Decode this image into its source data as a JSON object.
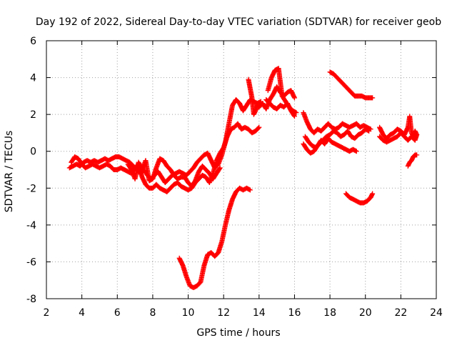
{
  "chart_data": {
    "type": "scatter",
    "title": "Day 192 of 2022, Sidereal Day-to-day VTEC variation (SDTVAR) for receiver geob",
    "xlabel": "GPS time / hours",
    "ylabel": "SDTVAR / TECUs",
    "xlim": [
      2,
      24
    ],
    "ylim": [
      -8,
      6
    ],
    "xticks": [
      "2",
      "4",
      "6",
      "8",
      "10",
      "12",
      "14",
      "16",
      "18",
      "20",
      "22",
      "24"
    ],
    "yticks": [
      "-8",
      "-6",
      "-4",
      "-2",
      "0",
      "2",
      "4",
      "6"
    ],
    "grid": true,
    "marker": "plus",
    "marker_color": "#ff0000",
    "series": [
      {
        "values": [
          [
            3.3,
            -0.9
          ],
          [
            3.5,
            -0.8
          ],
          [
            3.7,
            -0.7
          ],
          [
            3.9,
            -0.8
          ],
          [
            4.1,
            -0.6
          ],
          [
            4.3,
            -0.5
          ],
          [
            4.5,
            -0.6
          ],
          [
            4.7,
            -0.5
          ],
          [
            4.9,
            -0.6
          ],
          [
            5.1,
            -0.5
          ],
          [
            5.3,
            -0.4
          ],
          [
            5.5,
            -0.5
          ],
          [
            5.7,
            -0.4
          ],
          [
            5.9,
            -0.3
          ],
          [
            6.1,
            -0.3
          ],
          [
            6.3,
            -0.4
          ],
          [
            6.5,
            -0.5
          ],
          [
            6.7,
            -0.6
          ],
          [
            6.9,
            -0.8
          ],
          [
            7.1,
            -1.0
          ],
          [
            7.3,
            -1.2
          ],
          [
            7.5,
            -1.0
          ],
          [
            7.7,
            -1.3
          ],
          [
            7.9,
            -1.5
          ],
          [
            8.1,
            -1.3
          ],
          [
            8.3,
            -1.1
          ],
          [
            8.5,
            -1.4
          ],
          [
            8.7,
            -1.7
          ],
          [
            8.9,
            -1.5
          ],
          [
            9.1,
            -1.3
          ],
          [
            9.3,
            -1.2
          ],
          [
            9.5,
            -1.1
          ],
          [
            9.7,
            -1.2
          ],
          [
            9.9,
            -1.3
          ],
          [
            10.1,
            -1.1
          ],
          [
            10.3,
            -0.9
          ],
          [
            10.5,
            -0.6
          ],
          [
            10.7,
            -0.4
          ],
          [
            10.9,
            -0.2
          ],
          [
            11.1,
            -0.1
          ],
          [
            11.3,
            -0.5
          ],
          [
            11.5,
            -0.9
          ],
          [
            11.7,
            -0.7
          ],
          [
            11.9,
            -0.2
          ],
          [
            12.1,
            0.5
          ],
          [
            12.3,
            1.5
          ],
          [
            12.5,
            2.5
          ],
          [
            12.7,
            2.8
          ],
          [
            12.9,
            2.6
          ],
          [
            13.1,
            2.2
          ],
          [
            13.3,
            2.5
          ],
          [
            13.5,
            2.8
          ],
          [
            13.7,
            2.7
          ],
          [
            13.9,
            2.6
          ],
          [
            14.1,
            2.7
          ]
        ]
      },
      {
        "values": [
          [
            3.4,
            -0.6
          ],
          [
            3.6,
            -0.3
          ],
          [
            3.8,
            -0.4
          ],
          [
            4.0,
            -0.7
          ],
          [
            4.2,
            -0.9
          ],
          [
            4.4,
            -0.8
          ],
          [
            4.6,
            -0.7
          ],
          [
            4.8,
            -0.8
          ],
          [
            5.0,
            -0.9
          ],
          [
            5.2,
            -0.8
          ],
          [
            5.4,
            -0.7
          ],
          [
            5.6,
            -0.8
          ],
          [
            5.8,
            -1.0
          ],
          [
            6.0,
            -1.0
          ],
          [
            6.2,
            -0.9
          ],
          [
            6.4,
            -1.0
          ],
          [
            6.6,
            -1.1
          ],
          [
            6.8,
            -1.2
          ],
          [
            7.0,
            -0.9
          ],
          [
            7.2,
            -0.7
          ],
          [
            7.4,
            -1.4
          ],
          [
            7.6,
            -1.8
          ],
          [
            7.8,
            -2.0
          ],
          [
            8.0,
            -2.0
          ],
          [
            8.2,
            -1.8
          ],
          [
            8.4,
            -2.0
          ],
          [
            8.6,
            -2.1
          ],
          [
            8.8,
            -2.2
          ],
          [
            9.0,
            -2.0
          ],
          [
            9.2,
            -1.8
          ],
          [
            9.4,
            -1.7
          ],
          [
            9.6,
            -1.9
          ],
          [
            9.8,
            -2.0
          ],
          [
            10.0,
            -2.1
          ],
          [
            10.2,
            -2.0
          ],
          [
            10.4,
            -1.7
          ],
          [
            10.6,
            -1.5
          ],
          [
            10.8,
            -1.3
          ],
          [
            11.0,
            -1.4
          ],
          [
            11.2,
            -1.7
          ],
          [
            11.4,
            -1.2
          ],
          [
            11.6,
            -0.5
          ],
          [
            11.8,
            -0.1
          ],
          [
            12.0,
            0.2
          ],
          [
            12.2,
            0.8
          ],
          [
            12.4,
            1.2
          ],
          [
            12.6,
            1.3
          ],
          [
            12.8,
            1.5
          ],
          [
            13.0,
            1.2
          ],
          [
            13.2,
            1.3
          ],
          [
            13.4,
            1.2
          ],
          [
            13.6,
            1.0
          ],
          [
            13.8,
            1.1
          ],
          [
            14.0,
            1.3
          ]
        ]
      },
      {
        "values": [
          [
            6.6,
            -0.7
          ],
          [
            6.8,
            -1.0
          ],
          [
            7.0,
            -1.5
          ],
          [
            7.2,
            -0.6
          ],
          [
            7.4,
            -1.0
          ],
          [
            7.6,
            -0.5
          ],
          [
            7.8,
            -1.6
          ],
          [
            8.0,
            -1.5
          ],
          [
            8.2,
            -0.9
          ],
          [
            8.4,
            -0.4
          ],
          [
            8.6,
            -0.5
          ],
          [
            8.8,
            -0.8
          ],
          [
            9.0,
            -1.0
          ],
          [
            9.2,
            -1.3
          ],
          [
            9.4,
            -1.5
          ],
          [
            9.6,
            -1.4
          ],
          [
            9.8,
            -1.4
          ],
          [
            10.0,
            -1.7
          ],
          [
            10.2,
            -1.9
          ],
          [
            10.4,
            -1.6
          ],
          [
            10.6,
            -1.1
          ],
          [
            10.8,
            -0.8
          ],
          [
            11.0,
            -1.0
          ],
          [
            11.2,
            -1.2
          ],
          [
            11.4,
            -1.5
          ],
          [
            11.6,
            -1.2
          ],
          [
            11.8,
            -0.9
          ]
        ]
      },
      {
        "values": [
          [
            9.5,
            -5.8
          ],
          [
            9.7,
            -6.2
          ],
          [
            9.9,
            -6.8
          ],
          [
            10.1,
            -7.3
          ],
          [
            10.3,
            -7.4
          ],
          [
            10.5,
            -7.3
          ],
          [
            10.7,
            -7.1
          ],
          [
            10.9,
            -6.2
          ],
          [
            11.1,
            -5.6
          ],
          [
            11.3,
            -5.5
          ],
          [
            11.5,
            -5.7
          ],
          [
            11.7,
            -5.5
          ],
          [
            11.9,
            -4.9
          ],
          [
            12.1,
            -4.0
          ],
          [
            12.3,
            -3.2
          ],
          [
            12.5,
            -2.6
          ],
          [
            12.7,
            -2.2
          ],
          [
            12.9,
            -2.0
          ],
          [
            13.1,
            -2.1
          ],
          [
            13.3,
            -2.0
          ],
          [
            13.5,
            -2.1
          ]
        ]
      },
      {
        "values": [
          [
            13.4,
            3.9
          ],
          [
            13.5,
            3.4
          ],
          [
            13.6,
            2.9
          ],
          [
            13.7,
            2.0
          ],
          [
            13.8,
            2.2
          ],
          [
            13.9,
            2.5
          ],
          [
            14.0,
            2.4
          ],
          [
            14.2,
            2.6
          ],
          [
            14.4,
            2.3
          ],
          [
            14.6,
            2.8
          ],
          [
            14.8,
            3.1
          ],
          [
            15.0,
            3.5
          ],
          [
            15.2,
            3.2
          ],
          [
            15.4,
            3.0
          ],
          [
            15.6,
            3.2
          ],
          [
            15.8,
            3.3
          ],
          [
            16.0,
            2.9
          ]
        ]
      },
      {
        "values": [
          [
            14.5,
            3.3
          ],
          [
            14.7,
            4.0
          ],
          [
            14.9,
            4.4
          ],
          [
            15.1,
            4.5
          ],
          [
            15.3,
            3.0
          ],
          [
            15.5,
            2.7
          ],
          [
            15.7,
            2.4
          ],
          [
            15.9,
            2.2
          ],
          [
            16.1,
            2.1
          ]
        ]
      },
      {
        "values": [
          [
            14.4,
            2.8
          ],
          [
            14.6,
            2.6
          ],
          [
            14.8,
            2.4
          ],
          [
            15.0,
            2.3
          ],
          [
            15.2,
            2.5
          ],
          [
            15.4,
            2.4
          ],
          [
            15.6,
            2.6
          ],
          [
            15.8,
            2.2
          ],
          [
            16.0,
            1.9
          ]
        ]
      },
      {
        "values": [
          [
            16.5,
            2.1
          ],
          [
            16.7,
            1.6
          ],
          [
            16.9,
            1.2
          ],
          [
            17.1,
            1.0
          ],
          [
            17.3,
            1.2
          ],
          [
            17.5,
            1.1
          ],
          [
            17.7,
            1.3
          ],
          [
            17.9,
            1.5
          ],
          [
            18.1,
            1.3
          ],
          [
            18.3,
            1.2
          ],
          [
            18.5,
            1.3
          ],
          [
            18.7,
            1.5
          ],
          [
            18.9,
            1.4
          ],
          [
            19.1,
            1.3
          ],
          [
            19.3,
            1.4
          ],
          [
            19.5,
            1.5
          ],
          [
            19.7,
            1.3
          ],
          [
            19.9,
            1.4
          ],
          [
            20.1,
            1.3
          ],
          [
            20.3,
            1.2
          ]
        ]
      },
      {
        "values": [
          [
            16.6,
            0.8
          ],
          [
            16.8,
            0.5
          ],
          [
            17.0,
            0.3
          ],
          [
            17.2,
            0.2
          ],
          [
            17.4,
            0.4
          ],
          [
            17.6,
            0.6
          ],
          [
            17.8,
            0.8
          ],
          [
            18.0,
            0.9
          ],
          [
            18.2,
            1.1
          ],
          [
            18.4,
            1.0
          ],
          [
            18.6,
            0.8
          ],
          [
            18.8,
            0.9
          ],
          [
            19.0,
            1.1
          ],
          [
            19.2,
            0.8
          ],
          [
            19.4,
            0.7
          ],
          [
            19.6,
            0.9
          ],
          [
            19.8,
            1.0
          ],
          [
            20.0,
            1.2
          ],
          [
            20.2,
            1.1
          ]
        ]
      },
      {
        "values": [
          [
            16.5,
            0.4
          ],
          [
            16.7,
            0.1
          ],
          [
            16.9,
            -0.1
          ],
          [
            17.1,
            0.0
          ],
          [
            17.3,
            0.3
          ],
          [
            17.5,
            0.6
          ],
          [
            17.7,
            0.4
          ],
          [
            17.9,
            0.7
          ],
          [
            18.1,
            0.5
          ],
          [
            18.3,
            0.4
          ],
          [
            18.5,
            0.3
          ],
          [
            18.7,
            0.2
          ],
          [
            18.9,
            0.1
          ],
          [
            19.1,
            0.0
          ],
          [
            19.3,
            0.1
          ],
          [
            19.5,
            0.0
          ]
        ]
      },
      {
        "values": [
          [
            18.0,
            4.3
          ],
          [
            18.2,
            4.2
          ],
          [
            18.4,
            4.0
          ],
          [
            18.6,
            3.8
          ],
          [
            18.8,
            3.6
          ],
          [
            19.0,
            3.4
          ],
          [
            19.2,
            3.2
          ],
          [
            19.4,
            3.0
          ],
          [
            19.6,
            3.0
          ],
          [
            19.8,
            3.0
          ],
          [
            20.0,
            2.9
          ],
          [
            20.2,
            2.9
          ],
          [
            20.4,
            2.9
          ]
        ]
      },
      {
        "values": [
          [
            18.9,
            -2.3
          ],
          [
            19.1,
            -2.5
          ],
          [
            19.3,
            -2.6
          ],
          [
            19.5,
            -2.7
          ],
          [
            19.7,
            -2.8
          ],
          [
            19.9,
            -2.8
          ],
          [
            20.1,
            -2.7
          ],
          [
            20.3,
            -2.5
          ],
          [
            20.4,
            -2.3
          ]
        ]
      },
      {
        "values": [
          [
            20.8,
            1.3
          ],
          [
            21.0,
            0.9
          ],
          [
            21.2,
            0.7
          ],
          [
            21.4,
            0.9
          ],
          [
            21.6,
            1.0
          ],
          [
            21.8,
            1.2
          ],
          [
            22.0,
            1.1
          ],
          [
            22.2,
            0.9
          ],
          [
            22.4,
            1.3
          ],
          [
            22.5,
            1.9
          ],
          [
            22.6,
            1.0
          ],
          [
            22.7,
            0.8
          ],
          [
            22.8,
            1.1
          ],
          [
            22.9,
            0.9
          ]
        ]
      },
      {
        "values": [
          [
            20.8,
            0.8
          ],
          [
            21.0,
            0.6
          ],
          [
            21.2,
            0.5
          ],
          [
            21.4,
            0.6
          ],
          [
            21.6,
            0.7
          ],
          [
            21.8,
            0.8
          ],
          [
            22.0,
            1.0
          ],
          [
            22.2,
            0.8
          ],
          [
            22.4,
            0.6
          ],
          [
            22.6,
            0.8
          ],
          [
            22.8,
            0.6
          ],
          [
            22.9,
            0.9
          ]
        ]
      },
      {
        "values": [
          [
            22.4,
            -0.8
          ],
          [
            22.5,
            -0.6
          ],
          [
            22.6,
            -0.5
          ],
          [
            22.7,
            -0.3
          ],
          [
            22.8,
            -0.2
          ],
          [
            22.9,
            -0.2
          ]
        ]
      }
    ]
  }
}
